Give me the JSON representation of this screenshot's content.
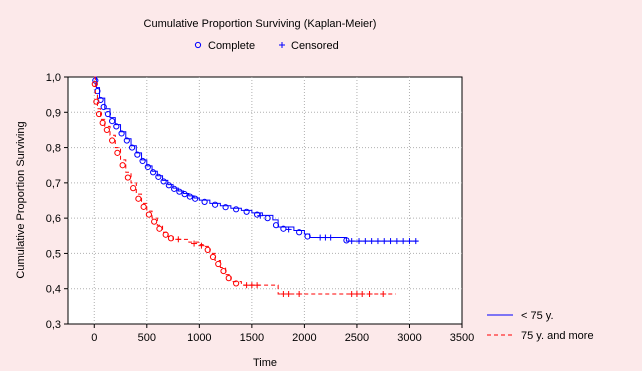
{
  "chart_data": {
    "type": "line",
    "title": "Cumulative Proportion Surviving (Kaplan-Meier)",
    "xlabel": "Time",
    "ylabel": "Cumulative Proportion Surviving",
    "xlim": [
      -250,
      3500
    ],
    "ylim": [
      0.3,
      1.0
    ],
    "xticks": [
      0,
      500,
      1000,
      1500,
      2000,
      2500,
      3000,
      3500
    ],
    "yticks": [
      0.3,
      0.4,
      0.5,
      0.6,
      0.7,
      0.8,
      0.9,
      1.0
    ],
    "xtick_labels": [
      "0",
      "500",
      "1000",
      "1500",
      "2000",
      "2500",
      "3000",
      "3500"
    ],
    "ytick_labels": [
      "0,3",
      "0,4",
      "0,5",
      "0,6",
      "0,7",
      "0,8",
      "0,9",
      "1,0"
    ],
    "grid": true,
    "marker_legend": {
      "complete_label": "Complete",
      "censored_label": "Censored",
      "complete_symbol": "o",
      "censored_symbol": "+",
      "placement": "top-center"
    },
    "legend_placement": "bottom-right",
    "series": [
      {
        "name": "< 75 y.",
        "color": "#0000ff",
        "line_style": "solid",
        "values": [
          [
            0,
            1.0
          ],
          [
            20,
            0.97
          ],
          [
            50,
            0.94
          ],
          [
            100,
            0.91
          ],
          [
            150,
            0.885
          ],
          [
            200,
            0.865
          ],
          [
            250,
            0.845
          ],
          [
            300,
            0.825
          ],
          [
            350,
            0.805
          ],
          [
            400,
            0.785
          ],
          [
            450,
            0.765
          ],
          [
            500,
            0.748
          ],
          [
            550,
            0.733
          ],
          [
            600,
            0.72
          ],
          [
            650,
            0.707
          ],
          [
            700,
            0.695
          ],
          [
            750,
            0.685
          ],
          [
            800,
            0.677
          ],
          [
            850,
            0.67
          ],
          [
            900,
            0.663
          ],
          [
            950,
            0.657
          ],
          [
            1000,
            0.651
          ],
          [
            1100,
            0.642
          ],
          [
            1200,
            0.635
          ],
          [
            1300,
            0.628
          ],
          [
            1400,
            0.622
          ],
          [
            1500,
            0.615
          ],
          [
            1600,
            0.608
          ],
          [
            1700,
            0.595
          ],
          [
            1750,
            0.575
          ],
          [
            1900,
            0.565
          ],
          [
            2000,
            0.555
          ],
          [
            2050,
            0.545
          ],
          [
            2300,
            0.545
          ],
          [
            2400,
            0.535
          ],
          [
            3080,
            0.535
          ]
        ],
        "complete_points": [
          [
            10,
            0.99
          ],
          [
            30,
            0.96
          ],
          [
            60,
            0.935
          ],
          [
            90,
            0.915
          ],
          [
            130,
            0.895
          ],
          [
            170,
            0.875
          ],
          [
            210,
            0.86
          ],
          [
            260,
            0.84
          ],
          [
            310,
            0.82
          ],
          [
            360,
            0.8
          ],
          [
            410,
            0.78
          ],
          [
            460,
            0.762
          ],
          [
            510,
            0.745
          ],
          [
            560,
            0.73
          ],
          [
            610,
            0.717
          ],
          [
            660,
            0.704
          ],
          [
            710,
            0.693
          ],
          [
            760,
            0.683
          ],
          [
            810,
            0.675
          ],
          [
            860,
            0.668
          ],
          [
            910,
            0.661
          ],
          [
            960,
            0.655
          ],
          [
            1050,
            0.646
          ],
          [
            1150,
            0.638
          ],
          [
            1250,
            0.631
          ],
          [
            1350,
            0.625
          ],
          [
            1450,
            0.618
          ],
          [
            1550,
            0.61
          ],
          [
            1650,
            0.6
          ],
          [
            1730,
            0.58
          ],
          [
            1800,
            0.57
          ],
          [
            1950,
            0.56
          ],
          [
            2030,
            0.548
          ],
          [
            2400,
            0.537
          ]
        ],
        "censored_points": [
          [
            1580,
            0.607
          ],
          [
            1850,
            0.568
          ],
          [
            2150,
            0.545
          ],
          [
            2200,
            0.545
          ],
          [
            2250,
            0.545
          ],
          [
            2450,
            0.535
          ],
          [
            2520,
            0.535
          ],
          [
            2580,
            0.535
          ],
          [
            2640,
            0.535
          ],
          [
            2700,
            0.535
          ],
          [
            2760,
            0.535
          ],
          [
            2820,
            0.535
          ],
          [
            2880,
            0.535
          ],
          [
            2940,
            0.535
          ],
          [
            3000,
            0.535
          ],
          [
            3060,
            0.535
          ]
        ]
      },
      {
        "name": "75 y. and more",
        "color": "#ff0000",
        "line_style": "dashed",
        "values": [
          [
            0,
            1.0
          ],
          [
            10,
            0.95
          ],
          [
            30,
            0.91
          ],
          [
            60,
            0.88
          ],
          [
            100,
            0.86
          ],
          [
            150,
            0.835
          ],
          [
            200,
            0.8
          ],
          [
            250,
            0.765
          ],
          [
            300,
            0.73
          ],
          [
            350,
            0.7
          ],
          [
            400,
            0.668
          ],
          [
            450,
            0.642
          ],
          [
            500,
            0.62
          ],
          [
            550,
            0.6
          ],
          [
            600,
            0.58
          ],
          [
            650,
            0.56
          ],
          [
            700,
            0.548
          ],
          [
            750,
            0.54
          ],
          [
            850,
            0.54
          ],
          [
            900,
            0.532
          ],
          [
            1000,
            0.525
          ],
          [
            1050,
            0.52
          ],
          [
            1100,
            0.5
          ],
          [
            1150,
            0.48
          ],
          [
            1200,
            0.46
          ],
          [
            1250,
            0.44
          ],
          [
            1300,
            0.42
          ],
          [
            1400,
            0.41
          ],
          [
            1600,
            0.41
          ],
          [
            1750,
            0.385
          ],
          [
            2870,
            0.385
          ]
        ],
        "complete_points": [
          [
            5,
            0.98
          ],
          [
            20,
            0.93
          ],
          [
            45,
            0.895
          ],
          [
            80,
            0.87
          ],
          [
            120,
            0.85
          ],
          [
            170,
            0.82
          ],
          [
            220,
            0.785
          ],
          [
            270,
            0.75
          ],
          [
            320,
            0.715
          ],
          [
            370,
            0.685
          ],
          [
            420,
            0.655
          ],
          [
            470,
            0.632
          ],
          [
            520,
            0.61
          ],
          [
            570,
            0.59
          ],
          [
            620,
            0.57
          ],
          [
            680,
            0.553
          ],
          [
            730,
            0.543
          ],
          [
            1080,
            0.51
          ],
          [
            1130,
            0.49
          ],
          [
            1180,
            0.47
          ],
          [
            1230,
            0.45
          ],
          [
            1280,
            0.43
          ],
          [
            1350,
            0.415
          ]
        ],
        "censored_points": [
          [
            800,
            0.54
          ],
          [
            950,
            0.528
          ],
          [
            1020,
            0.522
          ],
          [
            1450,
            0.41
          ],
          [
            1500,
            0.41
          ],
          [
            1550,
            0.41
          ],
          [
            1800,
            0.385
          ],
          [
            1850,
            0.385
          ],
          [
            1950,
            0.385
          ],
          [
            2450,
            0.385
          ],
          [
            2500,
            0.385
          ],
          [
            2550,
            0.385
          ],
          [
            2620,
            0.385
          ],
          [
            2750,
            0.385
          ]
        ]
      }
    ]
  }
}
